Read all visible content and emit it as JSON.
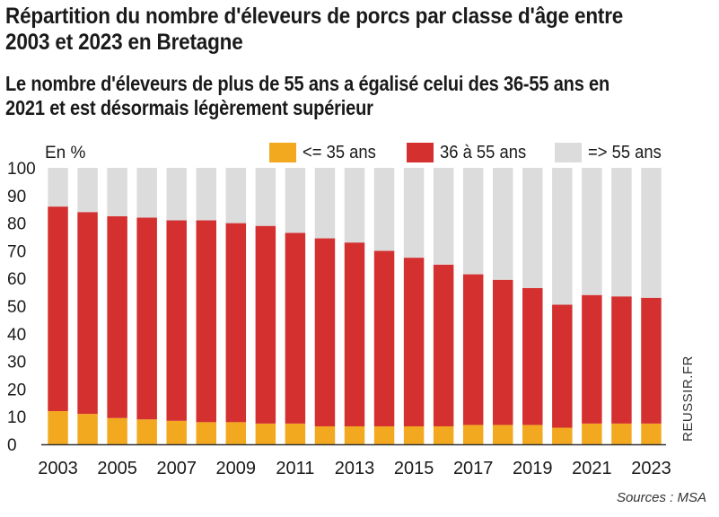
{
  "chart_data": {
    "type": "bar",
    "stacked": true,
    "title": "Répartition du nombre d'éleveurs de porcs par classe d'âge entre 2003 et 2023 en Bretagne",
    "subtitle": "Le nombre d'éleveurs de plus de 55 ans a égalisé celui des 36-55 ans en 2021 et est désormais légèrement supérieur",
    "ylabel": "En %",
    "ylim": [
      0,
      100
    ],
    "yticks": [
      0,
      10,
      20,
      30,
      40,
      50,
      60,
      70,
      80,
      90,
      100
    ],
    "categories": [
      "2003",
      "2004",
      "2005",
      "2006",
      "2007",
      "2008",
      "2009",
      "2010",
      "2011",
      "2012",
      "2013",
      "2014",
      "2015",
      "2016",
      "2017",
      "2018",
      "2019",
      "2020",
      "2021",
      "2022",
      "2023"
    ],
    "xtick_labels": [
      "2003",
      "",
      "2005",
      "",
      "2007",
      "",
      "2009",
      "",
      "2011",
      "",
      "2013",
      "",
      "2015",
      "",
      "2017",
      "",
      "2019",
      "",
      "2021",
      "",
      "2023"
    ],
    "series": [
      {
        "name": "<= 35 ans",
        "color": "#f2a91f",
        "values": [
          12,
          11,
          9.5,
          9,
          8.5,
          8,
          8,
          7.5,
          7.5,
          6.5,
          6.5,
          6.5,
          6.5,
          6.5,
          7,
          7,
          7,
          6,
          7.5,
          7.5,
          7.5
        ]
      },
      {
        "name": "36 à 55 ans",
        "color": "#d3302f",
        "values": [
          74,
          73,
          73,
          73,
          72.5,
          73,
          72,
          71.5,
          69,
          68,
          66.5,
          63.5,
          61,
          58.5,
          54.5,
          52.5,
          49.5,
          44.5,
          46.5,
          46,
          45.5
        ]
      },
      {
        "name": "=> 55 ans",
        "color": "#dcdcdc",
        "values": [
          14,
          16,
          17.5,
          18,
          19,
          19,
          20,
          21,
          23.5,
          25.5,
          27,
          30,
          32.5,
          35,
          38.5,
          40.5,
          43.5,
          49.5,
          46,
          46.5,
          47
        ]
      }
    ],
    "legend_position": "top-right",
    "grid": false
  },
  "credit": "REUSSIR.FR",
  "source": "Sources : MSA"
}
